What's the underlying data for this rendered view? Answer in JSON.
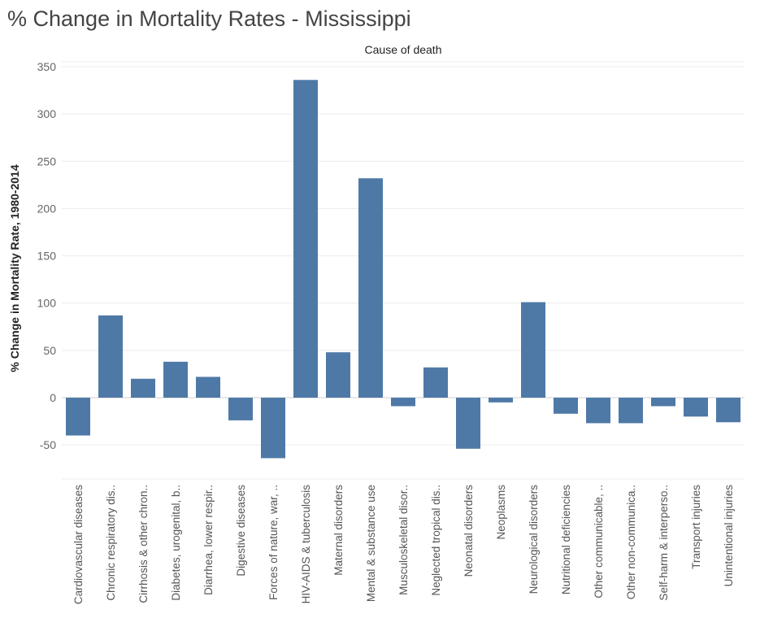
{
  "chart_data": {
    "type": "bar",
    "title": "% Change in Mortality Rates - Mississippi",
    "column_header": "Cause of death",
    "xlabel": "",
    "ylabel": "% Change in Mortality Rate, 1980-2014",
    "ylim": [
      -85,
      355
    ],
    "yticks": [
      -50,
      0,
      50,
      100,
      150,
      200,
      250,
      300,
      350
    ],
    "ytick_labels": [
      "-50",
      "0",
      "50",
      "100",
      "150",
      "200",
      "250",
      "300",
      "350"
    ],
    "grid": true,
    "color": "#4e79a7",
    "categories": [
      "Cardiovascular diseases",
      "Chronic respiratory dis..",
      "Cirrhosis & other chron..",
      "Diabetes, urogenital, b..",
      "Diarrhea, lower respir..",
      "Digestive diseases",
      "Forces of nature, war, ..",
      "HIV-AIDS & tuberculosis",
      "Maternal disorders",
      "Mental & substance use",
      "Musculoskeletal disor..",
      "Neglected tropical dis..",
      "Neonatal disorders",
      "Neoplasms",
      "Neurological disorders",
      "Nutritional deficiencies",
      "Other communicable, ..",
      "Other non-communica..",
      "Self-harm & interperso..",
      "Transport injuries",
      "Unintentional injuries"
    ],
    "values": [
      -40,
      87,
      20,
      38,
      22,
      -24,
      -64,
      336,
      48,
      232,
      -9,
      32,
      -54,
      -5,
      101,
      -17,
      -27,
      -27,
      -9,
      -20,
      -26
    ]
  }
}
